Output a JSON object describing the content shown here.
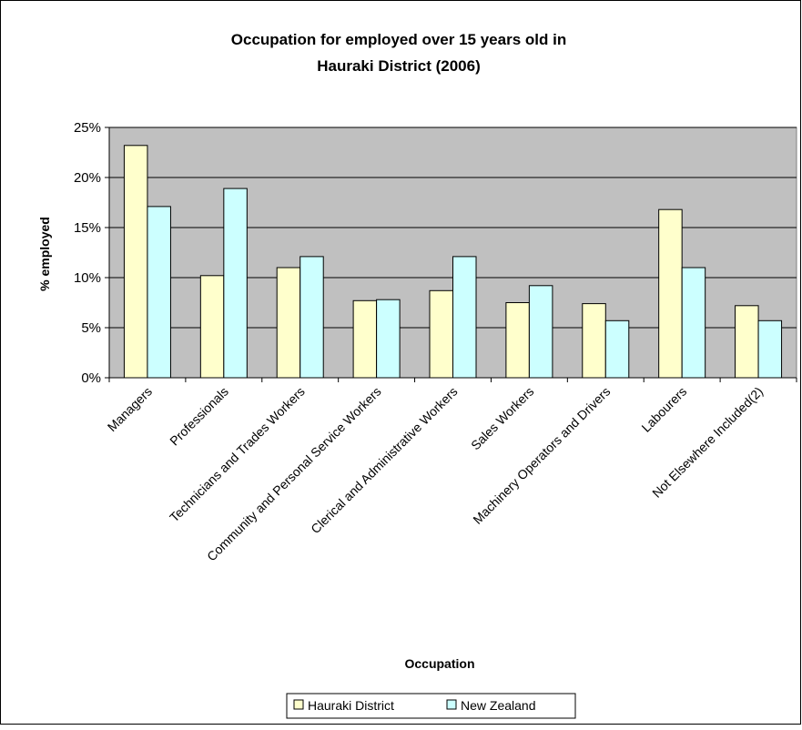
{
  "chart_data": {
    "type": "bar",
    "title": [
      "Occupation for employed over 15 years old in",
      "Hauraki District (2006)"
    ],
    "xlabel": "Occupation",
    "ylabel": "% employed",
    "ylim": [
      0,
      25
    ],
    "yticks": [
      "0%",
      "5%",
      "10%",
      "15%",
      "20%",
      "25%"
    ],
    "grid": true,
    "legend_position": "bottom",
    "plot_background": "#c0c0c0",
    "categories": [
      "Managers",
      "Professionals",
      "Technicians and Trades Workers",
      "Community and Personal Service Workers",
      "Clerical and Administrative Workers",
      "Sales Workers",
      "Machinery Operators and Drivers",
      "Labourers",
      "Not Elsewhere Included(2)"
    ],
    "series": [
      {
        "name": "Hauraki District",
        "color": "#ffffcc",
        "values": [
          23.2,
          10.2,
          11.0,
          7.7,
          8.7,
          7.5,
          7.4,
          16.8,
          7.2
        ]
      },
      {
        "name": "New Zealand",
        "color": "#ccffff",
        "values": [
          17.1,
          18.9,
          12.1,
          7.8,
          12.1,
          9.2,
          5.7,
          11.0,
          5.7
        ]
      }
    ]
  }
}
